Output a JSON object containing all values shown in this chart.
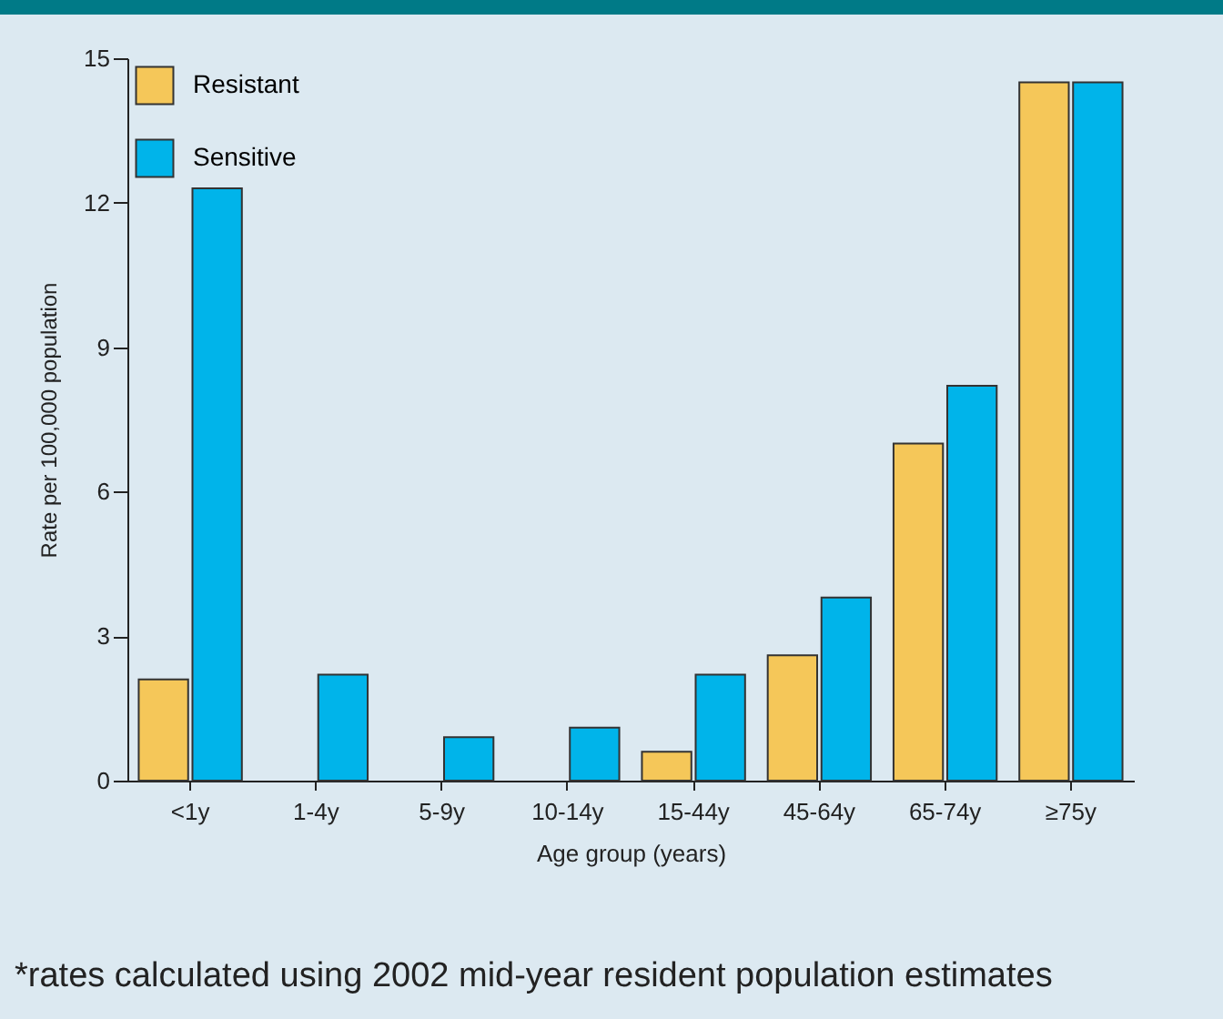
{
  "chart_data": {
    "type": "bar",
    "xlabel": "Age group (years)",
    "ylabel": "Rate per 100,000 population",
    "categories": [
      "<1y",
      "1-4y",
      "5-9y",
      "10-14y",
      "15-44y",
      "45-64y",
      "65-74y",
      "≥75y"
    ],
    "series": [
      {
        "name": "Resistant",
        "color": "#f5c759",
        "values": [
          2.1,
          0,
          0,
          0,
          0.6,
          2.6,
          7.0,
          14.5
        ]
      },
      {
        "name": "Sensitive",
        "color": "#00b4ea",
        "values": [
          12.3,
          2.2,
          0.9,
          1.1,
          2.2,
          3.8,
          8.2,
          14.5
        ]
      }
    ],
    "ylim": [
      0,
      15
    ],
    "yticks": [
      0,
      3,
      6,
      9,
      12,
      15
    ],
    "grid": false,
    "legend": "top left",
    "annotations": [
      "*rates calculated using 2002 mid-year resident population estimates"
    ]
  }
}
